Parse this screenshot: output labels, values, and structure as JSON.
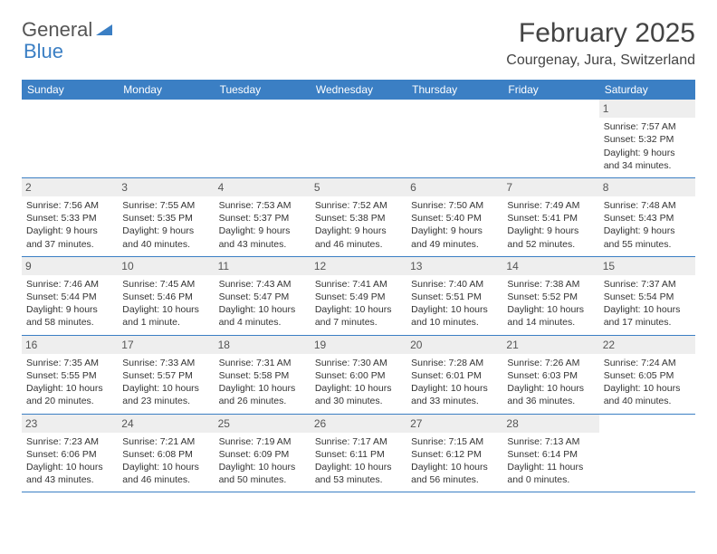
{
  "logo": {
    "word1": "General",
    "word2": "Blue"
  },
  "title": "February 2025",
  "location": "Courgenay, Jura, Switzerland",
  "colors": {
    "header_bg": "#3b7fc4",
    "header_text": "#ffffff",
    "daynum_bg": "#eeeeee",
    "row_border": "#3b7fc4",
    "page_bg": "#ffffff",
    "text": "#333333"
  },
  "day_headers": [
    "Sunday",
    "Monday",
    "Tuesday",
    "Wednesday",
    "Thursday",
    "Friday",
    "Saturday"
  ],
  "weeks": [
    [
      null,
      null,
      null,
      null,
      null,
      null,
      {
        "n": "1",
        "sunrise": "Sunrise: 7:57 AM",
        "sunset": "Sunset: 5:32 PM",
        "daylight": "Daylight: 9 hours and 34 minutes."
      }
    ],
    [
      {
        "n": "2",
        "sunrise": "Sunrise: 7:56 AM",
        "sunset": "Sunset: 5:33 PM",
        "daylight": "Daylight: 9 hours and 37 minutes."
      },
      {
        "n": "3",
        "sunrise": "Sunrise: 7:55 AM",
        "sunset": "Sunset: 5:35 PM",
        "daylight": "Daylight: 9 hours and 40 minutes."
      },
      {
        "n": "4",
        "sunrise": "Sunrise: 7:53 AM",
        "sunset": "Sunset: 5:37 PM",
        "daylight": "Daylight: 9 hours and 43 minutes."
      },
      {
        "n": "5",
        "sunrise": "Sunrise: 7:52 AM",
        "sunset": "Sunset: 5:38 PM",
        "daylight": "Daylight: 9 hours and 46 minutes."
      },
      {
        "n": "6",
        "sunrise": "Sunrise: 7:50 AM",
        "sunset": "Sunset: 5:40 PM",
        "daylight": "Daylight: 9 hours and 49 minutes."
      },
      {
        "n": "7",
        "sunrise": "Sunrise: 7:49 AM",
        "sunset": "Sunset: 5:41 PM",
        "daylight": "Daylight: 9 hours and 52 minutes."
      },
      {
        "n": "8",
        "sunrise": "Sunrise: 7:48 AM",
        "sunset": "Sunset: 5:43 PM",
        "daylight": "Daylight: 9 hours and 55 minutes."
      }
    ],
    [
      {
        "n": "9",
        "sunrise": "Sunrise: 7:46 AM",
        "sunset": "Sunset: 5:44 PM",
        "daylight": "Daylight: 9 hours and 58 minutes."
      },
      {
        "n": "10",
        "sunrise": "Sunrise: 7:45 AM",
        "sunset": "Sunset: 5:46 PM",
        "daylight": "Daylight: 10 hours and 1 minute."
      },
      {
        "n": "11",
        "sunrise": "Sunrise: 7:43 AM",
        "sunset": "Sunset: 5:47 PM",
        "daylight": "Daylight: 10 hours and 4 minutes."
      },
      {
        "n": "12",
        "sunrise": "Sunrise: 7:41 AM",
        "sunset": "Sunset: 5:49 PM",
        "daylight": "Daylight: 10 hours and 7 minutes."
      },
      {
        "n": "13",
        "sunrise": "Sunrise: 7:40 AM",
        "sunset": "Sunset: 5:51 PM",
        "daylight": "Daylight: 10 hours and 10 minutes."
      },
      {
        "n": "14",
        "sunrise": "Sunrise: 7:38 AM",
        "sunset": "Sunset: 5:52 PM",
        "daylight": "Daylight: 10 hours and 14 minutes."
      },
      {
        "n": "15",
        "sunrise": "Sunrise: 7:37 AM",
        "sunset": "Sunset: 5:54 PM",
        "daylight": "Daylight: 10 hours and 17 minutes."
      }
    ],
    [
      {
        "n": "16",
        "sunrise": "Sunrise: 7:35 AM",
        "sunset": "Sunset: 5:55 PM",
        "daylight": "Daylight: 10 hours and 20 minutes."
      },
      {
        "n": "17",
        "sunrise": "Sunrise: 7:33 AM",
        "sunset": "Sunset: 5:57 PM",
        "daylight": "Daylight: 10 hours and 23 minutes."
      },
      {
        "n": "18",
        "sunrise": "Sunrise: 7:31 AM",
        "sunset": "Sunset: 5:58 PM",
        "daylight": "Daylight: 10 hours and 26 minutes."
      },
      {
        "n": "19",
        "sunrise": "Sunrise: 7:30 AM",
        "sunset": "Sunset: 6:00 PM",
        "daylight": "Daylight: 10 hours and 30 minutes."
      },
      {
        "n": "20",
        "sunrise": "Sunrise: 7:28 AM",
        "sunset": "Sunset: 6:01 PM",
        "daylight": "Daylight: 10 hours and 33 minutes."
      },
      {
        "n": "21",
        "sunrise": "Sunrise: 7:26 AM",
        "sunset": "Sunset: 6:03 PM",
        "daylight": "Daylight: 10 hours and 36 minutes."
      },
      {
        "n": "22",
        "sunrise": "Sunrise: 7:24 AM",
        "sunset": "Sunset: 6:05 PM",
        "daylight": "Daylight: 10 hours and 40 minutes."
      }
    ],
    [
      {
        "n": "23",
        "sunrise": "Sunrise: 7:23 AM",
        "sunset": "Sunset: 6:06 PM",
        "daylight": "Daylight: 10 hours and 43 minutes."
      },
      {
        "n": "24",
        "sunrise": "Sunrise: 7:21 AM",
        "sunset": "Sunset: 6:08 PM",
        "daylight": "Daylight: 10 hours and 46 minutes."
      },
      {
        "n": "25",
        "sunrise": "Sunrise: 7:19 AM",
        "sunset": "Sunset: 6:09 PM",
        "daylight": "Daylight: 10 hours and 50 minutes."
      },
      {
        "n": "26",
        "sunrise": "Sunrise: 7:17 AM",
        "sunset": "Sunset: 6:11 PM",
        "daylight": "Daylight: 10 hours and 53 minutes."
      },
      {
        "n": "27",
        "sunrise": "Sunrise: 7:15 AM",
        "sunset": "Sunset: 6:12 PM",
        "daylight": "Daylight: 10 hours and 56 minutes."
      },
      {
        "n": "28",
        "sunrise": "Sunrise: 7:13 AM",
        "sunset": "Sunset: 6:14 PM",
        "daylight": "Daylight: 11 hours and 0 minutes."
      },
      null
    ]
  ]
}
